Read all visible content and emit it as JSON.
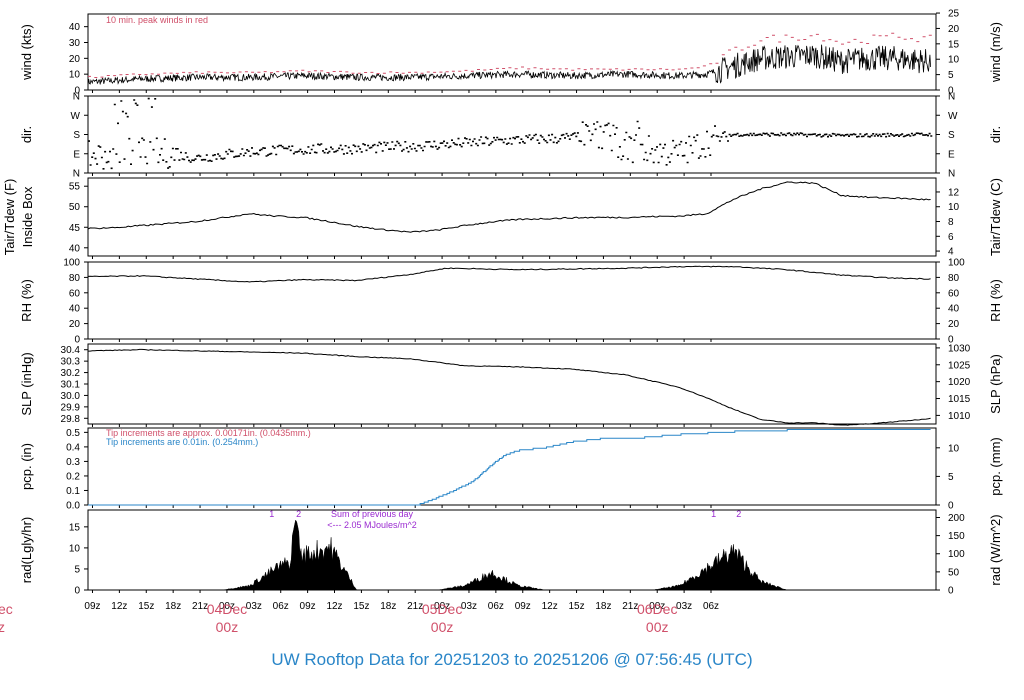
{
  "title": "UW Rooftop Data for 20251203  to  20251206 @ 07:56:45  (UTC)",
  "x_tick_labels": [
    "09z",
    "12z",
    "15z",
    "18z",
    "21z",
    "00z",
    "03z",
    "06z",
    "09z",
    "12z",
    "15z",
    "18z",
    "21z",
    "00z",
    "03z",
    "06z",
    "09z",
    "12z",
    "15z",
    "18z",
    "21z",
    "00z",
    "03z",
    "06z"
  ],
  "day_labels": [
    {
      "date": "04Dec",
      "time": "00z"
    },
    {
      "date": "05Dec",
      "time": "00z"
    },
    {
      "date": "06Dec",
      "time": "00z"
    }
  ],
  "left_cut_labels": {
    "date": "ec",
    "time": "z"
  },
  "panels": {
    "wind": {
      "left_label": "wind (kts)",
      "right_label": "wind (m/s)",
      "note": "10 min. peak winds in red",
      "left_ticks": [
        "0",
        "10",
        "20",
        "30",
        "40"
      ],
      "right_ticks": [
        "0",
        "5",
        "10",
        "15",
        "20",
        "25"
      ]
    },
    "dir": {
      "left_label": "dir.",
      "right_label": "dir.",
      "left_ticks": [
        "N",
        "E",
        "S",
        "W",
        "N"
      ],
      "right_ticks": [
        "N",
        "E",
        "S",
        "W",
        "N"
      ]
    },
    "temp": {
      "left_label_1": "Tair/Tdew (F)",
      "left_label_2": "Inside Box",
      "right_label": "Tair/Tdew (C)",
      "left_ticks": [
        "40",
        "45",
        "50",
        "55"
      ],
      "right_ticks": [
        "4",
        "6",
        "8",
        "10",
        "12"
      ]
    },
    "rh": {
      "left_label": "RH (%)",
      "right_label": "RH (%)",
      "left_ticks": [
        "0",
        "20",
        "40",
        "60",
        "80",
        "100"
      ],
      "right_ticks": [
        "0",
        "20",
        "40",
        "60",
        "80",
        "100"
      ]
    },
    "slp": {
      "left_label": "SLP (inHg)",
      "right_label": "SLP (hPa)",
      "left_ticks": [
        "29.8",
        "29.9",
        "30.0",
        "30.1",
        "30.2",
        "30.3",
        "30.4"
      ],
      "right_ticks": [
        "1010",
        "1015",
        "1020",
        "1025",
        "1030"
      ]
    },
    "pcp": {
      "left_label": "pcp. (in)",
      "right_label": "pcp. (mm)",
      "note1": "Tip increments are approx. 0.00171in. (0.0435mm.)",
      "note2": "Tip increments are 0.01in. (0.254mm.)",
      "left_ticks": [
        "0.0",
        "0.1",
        "0.2",
        "0.3",
        "0.4",
        "0.5"
      ],
      "right_ticks": [
        "0",
        "5",
        "10"
      ]
    },
    "rad": {
      "left_label": "rad(Lgly/hr)",
      "right_label": "rad (W/m^2)",
      "note1": "Sum of previous day",
      "note2": "<--- 2.05 MJoules/m^2",
      "markers": [
        "1",
        "2",
        "1",
        "2"
      ],
      "left_ticks": [
        "0",
        "5",
        "10",
        "15"
      ],
      "right_ticks": [
        "0",
        "50",
        "100",
        "150",
        "200"
      ]
    }
  },
  "colors": {
    "trace": "#000000",
    "peak_wind": "#d0506a",
    "precip": "#2a86c8",
    "note_purple": "#9a2ad0",
    "title": "#2a86c8",
    "day_label": "#d0506a"
  },
  "chart_data": [
    {
      "type": "line",
      "title": "wind",
      "ylabel": "wind (kts)",
      "ylim": [
        0,
        48
      ],
      "x_hours": [
        0,
        6,
        12,
        18,
        24,
        30,
        36,
        42,
        48,
        54,
        60,
        66,
        69,
        72,
        75,
        78,
        81,
        84,
        87,
        90,
        94
      ],
      "series": [
        {
          "name": "wind",
          "values": [
            5,
            7,
            8,
            8,
            9,
            8,
            8,
            9,
            10,
            9,
            10,
            9,
            10,
            15,
            20,
            21,
            22,
            18,
            20,
            20,
            18
          ]
        },
        {
          "name": "10 min. peak winds",
          "values": [
            8,
            10,
            11,
            11,
            12,
            11,
            11,
            12,
            14,
            13,
            13,
            13,
            15,
            25,
            32,
            33,
            35,
            30,
            32,
            34,
            32
          ]
        }
      ]
    },
    {
      "type": "scatter",
      "title": "dir.",
      "ylabel": "dir.",
      "ylim": [
        "N",
        "N"
      ],
      "x_hours": [
        0,
        6,
        9,
        12,
        18,
        24,
        30,
        36,
        42,
        48,
        54,
        57,
        60,
        66,
        69,
        72,
        78,
        84,
        90,
        94
      ],
      "series": [
        {
          "name": "wind direction (deg)",
          "values": [
            80,
            100,
            90,
            70,
            100,
            110,
            115,
            125,
            140,
            155,
            165,
            180,
            120,
            90,
            150,
            180,
            180,
            175,
            178,
            180
          ]
        }
      ]
    },
    {
      "type": "line",
      "title": "Inside Box",
      "ylabel": "Tair/Tdew (F)",
      "ylim": [
        38,
        57
      ],
      "x_hours": [
        0,
        3,
        6,
        9,
        12,
        15,
        18,
        21,
        24,
        27,
        30,
        33,
        36,
        39,
        42,
        45,
        48,
        51,
        54,
        57,
        60,
        63,
        66,
        69,
        72,
        75,
        78,
        81,
        84,
        87,
        90,
        94
      ],
      "series": [
        {
          "name": "Tair",
          "values": [
            44.7,
            44.9,
            45.4,
            45.9,
            46.4,
            47.3,
            48.3,
            47.7,
            47.4,
            46.4,
            45.2,
            44.4,
            43.8,
            44.3,
            45.4,
            46.3,
            46.9,
            47.1,
            47.3,
            47.4,
            47.4,
            47.6,
            47.7,
            48.3,
            51.8,
            54.3,
            56.0,
            55.8,
            52.8,
            52.3,
            52.1,
            51.7
          ]
        }
      ]
    },
    {
      "type": "line",
      "title": "RH (%)",
      "ylabel": "RH (%)",
      "ylim": [
        0,
        100
      ],
      "x_hours": [
        0,
        6,
        12,
        18,
        24,
        30,
        36,
        40,
        48,
        54,
        60,
        66,
        72,
        78,
        84,
        90,
        94
      ],
      "series": [
        {
          "name": "RH",
          "values": [
            81,
            82,
            78,
            74,
            77,
            76,
            84,
            92,
            90,
            91,
            92,
            94,
            94,
            90,
            83,
            79,
            78
          ]
        }
      ]
    },
    {
      "type": "line",
      "title": "SLP",
      "ylabel": "SLP (inHg)",
      "ylim": [
        29.75,
        30.45
      ],
      "x_hours": [
        0,
        6,
        12,
        18,
        24,
        30,
        36,
        42,
        48,
        54,
        60,
        66,
        69,
        72,
        75,
        78,
        81,
        84,
        87,
        90,
        93,
        94
      ],
      "series": [
        {
          "name": "SLP",
          "values": [
            30.39,
            30.4,
            30.39,
            30.38,
            30.37,
            30.34,
            30.32,
            30.26,
            30.25,
            30.23,
            30.18,
            30.07,
            29.98,
            29.88,
            29.79,
            29.76,
            29.76,
            29.74,
            29.75,
            29.77,
            29.79,
            29.8
          ]
        }
      ]
    },
    {
      "type": "line",
      "title": "pcp.",
      "ylabel": "pcp. (in)",
      "ylim": [
        0,
        0.53
      ],
      "x_hours": [
        0,
        6,
        12,
        18,
        24,
        30,
        36,
        37,
        40,
        43,
        45,
        46.5,
        48,
        51,
        54,
        57,
        60,
        66,
        72,
        78,
        84,
        90,
        94
      ],
      "series": [
        {
          "name": "accumulated precipitation",
          "values": [
            0,
            0,
            0,
            0,
            0,
            0,
            0,
            0.01,
            0.08,
            0.17,
            0.28,
            0.35,
            0.38,
            0.4,
            0.44,
            0.46,
            0.46,
            0.49,
            0.51,
            0.52,
            0.52,
            0.52,
            0.52
          ]
        }
      ]
    },
    {
      "type": "area",
      "title": "rad",
      "ylabel": "rad(Lgly/hr)",
      "ylim": [
        0,
        19
      ],
      "x_hours": [
        0,
        15,
        18,
        21,
        24,
        27,
        30,
        39,
        42,
        45,
        48,
        51,
        54,
        63,
        66,
        69,
        72,
        75,
        78,
        94
      ],
      "series": [
        {
          "name": "solar radiation",
          "values": [
            0,
            0,
            1,
            5,
            8,
            10,
            0,
            0,
            1,
            4,
            1,
            0,
            0,
            0,
            1,
            5,
            9,
            2,
            0,
            0
          ]
        }
      ]
    }
  ]
}
